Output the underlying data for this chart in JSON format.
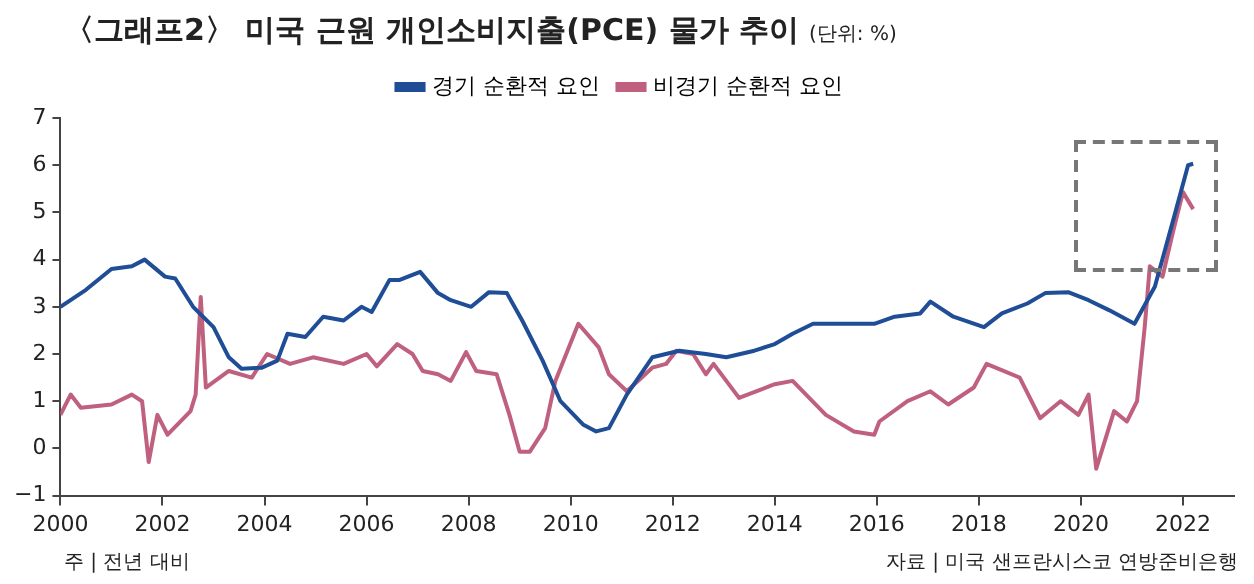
{
  "chart_data": {
    "type": "line",
    "title": "〈그래프2〉 미국 근원 개인소비지출(PCE) 물가 추이",
    "subtitle": "(단위: %)",
    "annotations": [
      "주 | 전년 대비",
      "자료 | 미국 샌프란시스코 연방준비은행"
    ],
    "xlim": [
      2000,
      2023
    ],
    "xticks": [
      2000,
      2002,
      2004,
      2006,
      2008,
      2010,
      2012,
      2014,
      2016,
      2018,
      2020,
      2022
    ],
    "ylim": [
      -1,
      7
    ],
    "yticks": [
      -1,
      0,
      1,
      2,
      3,
      4,
      5,
      6,
      7
    ],
    "grid": false,
    "legend": "top",
    "marker": "none",
    "line_style": "solid",
    "series": [
      {
        "name": "경기 순환적 요인",
        "color": "#1f4e96",
        "x": [
          2000.0,
          2000.5,
          2001.0,
          2001.4,
          2001.65,
          2002.05,
          2002.25,
          2002.6,
          2003.0,
          2003.3,
          2003.55,
          2003.95,
          2004.25,
          2004.45,
          2004.8,
          2005.15,
          2005.55,
          2005.9,
          2006.1,
          2006.45,
          2006.65,
          2007.05,
          2007.4,
          2007.65,
          2008.05,
          2008.4,
          2008.75,
          2009.05,
          2009.45,
          2009.8,
          2010.25,
          2010.5,
          2010.75,
          2011.1,
          2011.6,
          2012.13,
          2012.65,
          2013.05,
          2013.6,
          2014.0,
          2014.35,
          2014.75,
          2015.3,
          2015.95,
          2016.35,
          2016.85,
          2017.05,
          2017.5,
          2018.1,
          2018.45,
          2018.95,
          2019.3,
          2019.75,
          2020.15,
          2020.55,
          2021.05,
          2021.45,
          2021.85,
          2022.1,
          2022.2
        ],
        "values": [
          3.0,
          3.36,
          3.8,
          3.86,
          4.0,
          3.64,
          3.6,
          3.0,
          2.57,
          1.93,
          1.69,
          1.71,
          1.86,
          2.43,
          2.36,
          2.79,
          2.71,
          3.0,
          2.89,
          3.57,
          3.57,
          3.74,
          3.29,
          3.14,
          3.0,
          3.31,
          3.29,
          2.71,
          1.86,
          1.0,
          0.5,
          0.36,
          0.43,
          1.14,
          1.93,
          2.07,
          2.0,
          1.93,
          2.07,
          2.21,
          2.43,
          2.64,
          2.64,
          2.64,
          2.79,
          2.86,
          3.11,
          2.79,
          2.57,
          2.86,
          3.07,
          3.29,
          3.31,
          3.14,
          2.93,
          2.64,
          3.43,
          5.0,
          6.0,
          6.03
        ]
      },
      {
        "name": "비경기 순환적 요인",
        "color": "#c0607f",
        "x": [
          2000.0,
          2000.2,
          2000.4,
          2001.0,
          2001.4,
          2001.6,
          2001.73,
          2001.9,
          2002.1,
          2002.55,
          2002.65,
          2002.75,
          2002.85,
          2003.3,
          2003.75,
          2004.05,
          2004.5,
          2004.95,
          2005.55,
          2006.0,
          2006.2,
          2006.6,
          2006.9,
          2007.1,
          2007.4,
          2007.65,
          2007.95,
          2008.15,
          2008.55,
          2008.8,
          2009.0,
          2009.2,
          2009.5,
          2009.7,
          2010.15,
          2010.55,
          2010.75,
          2011.1,
          2011.6,
          2011.87,
          2012.07,
          2012.4,
          2012.65,
          2012.8,
          2013.3,
          2014.0,
          2014.35,
          2015.0,
          2015.55,
          2015.95,
          2016.05,
          2016.6,
          2017.05,
          2017.4,
          2017.9,
          2018.15,
          2018.8,
          2019.2,
          2019.6,
          2019.95,
          2020.15,
          2020.3,
          2020.65,
          2020.9,
          2021.1,
          2021.25,
          2021.35,
          2021.6,
          2021.8,
          2022.0,
          2022.2
        ],
        "values": [
          0.71,
          1.14,
          0.86,
          0.93,
          1.14,
          1.0,
          -0.29,
          0.71,
          0.29,
          0.79,
          1.14,
          3.21,
          1.29,
          1.64,
          1.5,
          2.0,
          1.79,
          1.93,
          1.79,
          2.0,
          1.74,
          2.21,
          2.0,
          1.64,
          1.57,
          1.43,
          2.04,
          1.64,
          1.57,
          0.71,
          -0.07,
          -0.07,
          0.43,
          1.43,
          2.64,
          2.14,
          1.57,
          1.21,
          1.71,
          1.79,
          2.07,
          2.0,
          1.57,
          1.79,
          1.07,
          1.36,
          1.43,
          0.71,
          0.36,
          0.29,
          0.57,
          1.0,
          1.21,
          0.93,
          1.29,
          1.79,
          1.5,
          0.64,
          1.0,
          0.71,
          1.14,
          -0.43,
          0.79,
          0.57,
          1.0,
          2.57,
          3.86,
          3.64,
          4.57,
          5.43,
          5.07
        ]
      }
    ]
  }
}
